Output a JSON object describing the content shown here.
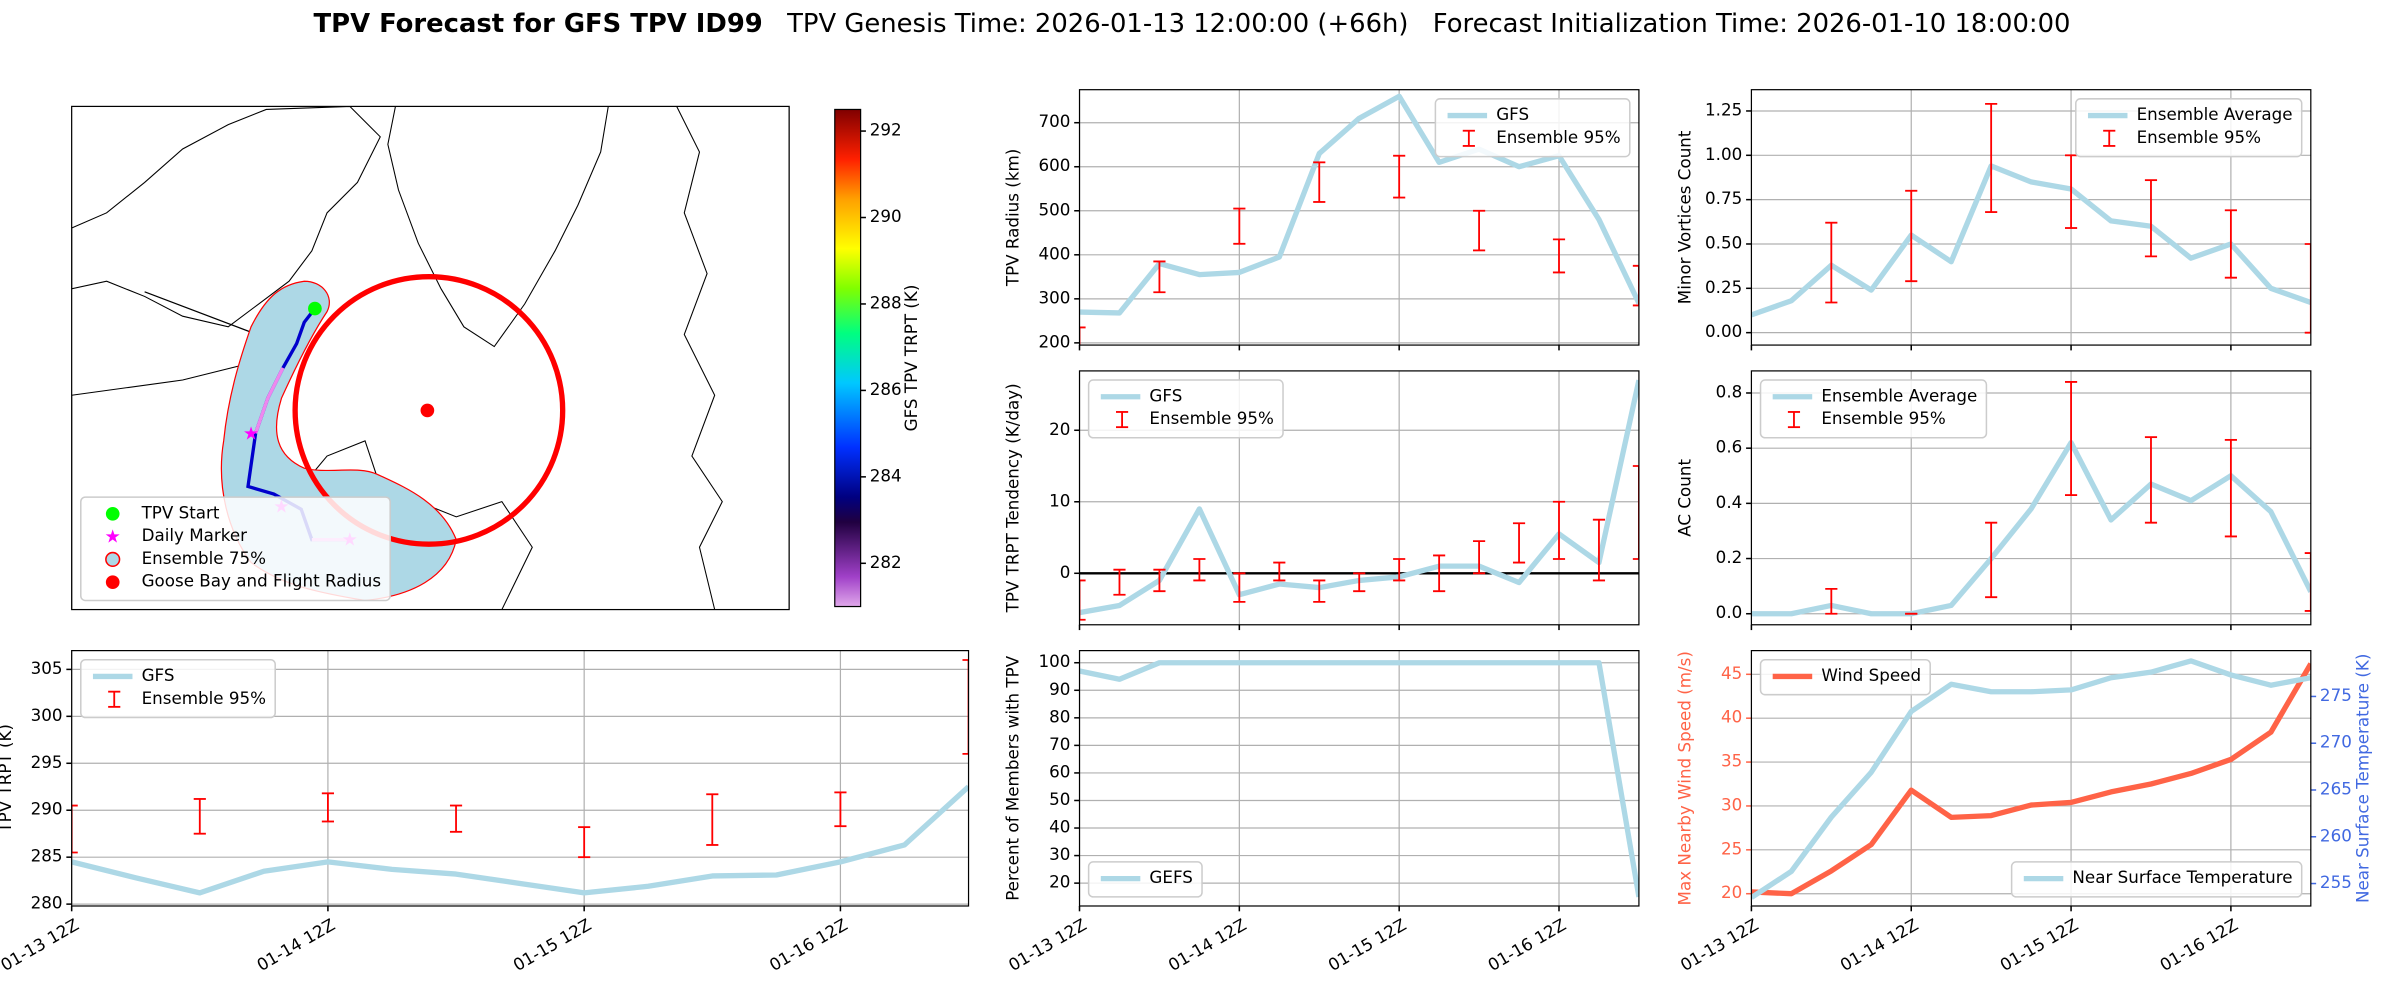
{
  "figure": {
    "title": "TPV Forecast for GFS TPV ID99",
    "genesis": "TPV Genesis Time: 2026-01-13 12:00:00 (+66h)",
    "init": "Forecast Initialization Time: 2026-01-10 18:00:00"
  },
  "chart_data": [
    {
      "type": "map",
      "legend": "lower left",
      "legend_items": [
        {
          "name": "TPV Start",
          "color": "#00ff00",
          "marker": "circle"
        },
        {
          "name": "Daily Marker",
          "color": "#ff00ff",
          "marker": "star"
        },
        {
          "name": "Ensemble 75%",
          "color": "#add8e6",
          "edge": "#ff0000",
          "marker": "circle"
        },
        {
          "name": "Goose Bay and Flight Radius",
          "color": "#ff0000",
          "marker": "circle"
        }
      ],
      "colorbar": {
        "label": "GFS TPV TRPT (K)",
        "clim": [
          281,
          292.5
        ],
        "ticks": [
          282,
          284,
          286,
          288,
          290,
          292
        ]
      }
    },
    {
      "type": "line",
      "ylabel": "TPV TRPT (K)",
      "grid": true,
      "legend": "upper left",
      "categories": [
        "01-13 12Z",
        null,
        null,
        null,
        "01-14 12Z",
        null,
        null,
        null,
        "01-15 12Z",
        null,
        null,
        null,
        "01-16 12Z",
        null,
        null
      ],
      "ylim": [
        279.8,
        307
      ],
      "yticks": [
        280,
        285,
        290,
        295,
        300,
        305
      ],
      "series": [
        {
          "name": "GFS",
          "type": "line",
          "color": "#add8e6",
          "values": [
            284.5,
            282.8,
            281.2,
            283.5,
            284.5,
            283.7,
            283.2,
            282.2,
            281.2,
            281.9,
            283,
            283.1,
            284.5,
            286.3,
            292.5
          ]
        },
        {
          "name": "Ensemble 95%",
          "type": "errorbar",
          "color": "#ff0000",
          "low": [
            285.5,
            null,
            287.5,
            null,
            288.8,
            null,
            287.7,
            null,
            285,
            null,
            286.3,
            null,
            288.3,
            null,
            296
          ],
          "high": [
            290.5,
            null,
            291.2,
            null,
            291.8,
            null,
            290.5,
            null,
            288.2,
            null,
            291.7,
            null,
            291.9,
            null,
            306
          ]
        }
      ]
    },
    {
      "type": "line",
      "ylabel": "TPV Radius (km)",
      "grid": true,
      "legend": "upper right",
      "categories": [
        null,
        null,
        null,
        null,
        null,
        null,
        null,
        null,
        null,
        null,
        null,
        null,
        null,
        null,
        null
      ],
      "ylim": [
        195,
        775
      ],
      "yticks": [
        200,
        300,
        400,
        500,
        600,
        700
      ],
      "series": [
        {
          "name": "GFS",
          "type": "line",
          "color": "#add8e6",
          "values": [
            270,
            268,
            380,
            355,
            360,
            395,
            630,
            710,
            760,
            610,
            640,
            600,
            625,
            480,
            290
          ]
        },
        {
          "name": "Ensemble 95%",
          "type": "errorbar",
          "color": "#ff0000",
          "low": [
            190,
            null,
            315,
            null,
            425,
            null,
            520,
            null,
            530,
            null,
            410,
            null,
            360,
            null,
            285
          ],
          "high": [
            235,
            null,
            385,
            null,
            505,
            null,
            610,
            null,
            625,
            null,
            500,
            null,
            435,
            null,
            375
          ]
        }
      ]
    },
    {
      "type": "line",
      "ylabel": "TPV TRPT Tendency (K/day)",
      "grid": true,
      "legend": "upper left",
      "hline": 0,
      "categories": [
        null,
        null,
        null,
        null,
        null,
        null,
        null,
        null,
        null,
        null,
        null,
        null,
        null,
        null,
        null
      ],
      "ylim": [
        -7.2,
        28.3
      ],
      "yticks": [
        0,
        10,
        20
      ],
      "series": [
        {
          "name": "GFS",
          "type": "line",
          "color": "#add8e6",
          "values": [
            -5.5,
            -4.5,
            -1,
            9,
            -3,
            -1.5,
            -2,
            -1,
            -0.5,
            1,
            1,
            -1.3,
            5.5,
            1.5,
            27
          ]
        },
        {
          "name": "Ensemble 95%",
          "type": "errorbar",
          "color": "#ff0000",
          "low": [
            -6.5,
            -3,
            -2.5,
            -1,
            -4,
            -1,
            -4,
            -2.5,
            -1,
            -2.5,
            0,
            1.5,
            2,
            -1,
            2
          ],
          "high": [
            -1,
            0.5,
            0.5,
            2,
            0,
            1.5,
            -1,
            0,
            2,
            2.5,
            4.5,
            7,
            10,
            7.5,
            15
          ]
        }
      ]
    },
    {
      "type": "line",
      "ylabel": "Percent of Members with TPV",
      "grid": true,
      "legend": "lower left",
      "categories": [
        "01-13 12Z",
        null,
        null,
        null,
        "01-14 12Z",
        null,
        null,
        null,
        "01-15 12Z",
        null,
        null,
        null,
        "01-16 12Z",
        null,
        null
      ],
      "ylim": [
        11.7,
        104.4
      ],
      "yticks": [
        20,
        30,
        40,
        50,
        60,
        70,
        80,
        90,
        100
      ],
      "series": [
        {
          "name": "GEFS",
          "type": "line",
          "color": "#add8e6",
          "values": [
            97,
            94,
            100,
            100,
            100,
            100,
            100,
            100,
            100,
            100,
            100,
            100,
            100,
            100,
            15
          ]
        }
      ]
    },
    {
      "type": "line",
      "ylabel": "Minor Vortices Count",
      "grid": true,
      "legend": "upper right",
      "categories": [
        null,
        null,
        null,
        null,
        null,
        null,
        null,
        null,
        null,
        null,
        null,
        null,
        null,
        null,
        null
      ],
      "ylim": [
        -0.07,
        1.37
      ],
      "yticks": [
        {
          "value": 0,
          "label": "0.00"
        },
        0.25,
        {
          "value": 0.5,
          "label": "0.50"
        },
        0.75,
        {
          "value": 1,
          "label": "1.00"
        },
        1.25
      ],
      "series": [
        {
          "name": "Ensemble Average",
          "type": "line",
          "color": "#add8e6",
          "values": [
            0.1,
            0.18,
            0.38,
            0.24,
            0.55,
            0.4,
            0.94,
            0.85,
            0.81,
            0.63,
            0.6,
            0.42,
            0.5,
            0.25,
            0.17
          ]
        },
        {
          "name": "Ensemble 95%",
          "type": "errorbar",
          "color": "#ff0000",
          "low": [
            null,
            null,
            0.17,
            null,
            0.29,
            null,
            0.68,
            null,
            0.59,
            null,
            0.43,
            null,
            0.31,
            null,
            0
          ],
          "high": [
            null,
            null,
            0.62,
            null,
            0.8,
            null,
            1.29,
            null,
            1,
            null,
            0.86,
            null,
            0.69,
            null,
            0.5
          ]
        }
      ]
    },
    {
      "type": "line",
      "ylabel": "AC Count",
      "grid": true,
      "legend": "upper left",
      "categories": [
        null,
        null,
        null,
        null,
        null,
        null,
        null,
        null,
        null,
        null,
        null,
        null,
        null,
        null,
        null
      ],
      "ylim": [
        -0.04,
        0.88
      ],
      "yticks": [
        {
          "value": 0,
          "label": "0.0"
        },
        0.2,
        0.4,
        0.6,
        0.8
      ],
      "series": [
        {
          "name": "Ensemble Average",
          "type": "line",
          "color": "#add8e6",
          "values": [
            0,
            0,
            0.03,
            0,
            0,
            0.03,
            0.2,
            0.38,
            0.62,
            0.34,
            0.47,
            0.41,
            0.5,
            0.37,
            0.08
          ]
        },
        {
          "name": "Ensemble 95%",
          "type": "errorbar",
          "color": "#ff0000",
          "low": [
            null,
            null,
            0,
            null,
            0,
            null,
            0.06,
            null,
            0.43,
            null,
            0.33,
            null,
            0.28,
            null,
            0.01
          ],
          "high": [
            null,
            null,
            0.09,
            null,
            0,
            null,
            0.33,
            null,
            0.84,
            null,
            0.64,
            null,
            0.63,
            null,
            0.22
          ]
        }
      ]
    },
    {
      "type": "line",
      "ylabel": "Max Nearby Wind Speed (m/s)",
      "y2label": "Near Surface Temperature (K)",
      "grid": true,
      "ylabel_color": "#ff6347",
      "y2label_color": "#4169e1",
      "categories": [
        "01-13 12Z",
        null,
        null,
        null,
        "01-14 12Z",
        null,
        null,
        null,
        "01-15 12Z",
        null,
        null,
        null,
        "01-16 12Z",
        null,
        null
      ],
      "ylim": [
        18.6,
        47.7
      ],
      "yticks": [
        20,
        25,
        30,
        35,
        40,
        45
      ],
      "y2lim": [
        252.6,
        279.9
      ],
      "y2ticks": [
        255,
        260,
        265,
        270,
        275
      ],
      "series": [
        {
          "name": "Wind Speed",
          "type": "line",
          "color": "#ff6347",
          "legend": "upper left",
          "values": [
            20.2,
            20,
            22.6,
            25.6,
            31.8,
            28.7,
            28.9,
            30.1,
            30.4,
            31.6,
            32.5,
            33.7,
            35.3,
            38.4,
            46.2
          ]
        },
        {
          "name": "Near Surface Temperature",
          "type": "line",
          "color": "#add8e6",
          "axis": "y2",
          "legend": "lower right",
          "values": [
            253.5,
            256.3,
            262.1,
            266.9,
            273.4,
            276.3,
            275.5,
            275.5,
            275.7,
            277,
            277.6,
            278.8,
            277.3,
            276.2,
            277
          ]
        }
      ]
    }
  ]
}
